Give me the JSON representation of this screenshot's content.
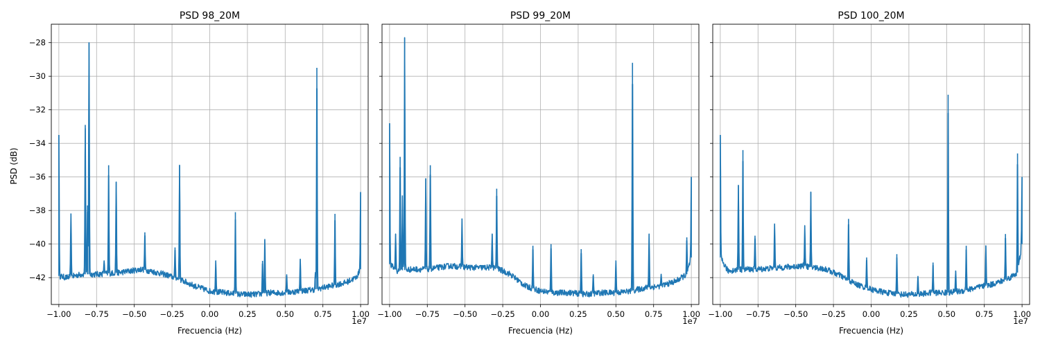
{
  "figure": {
    "shared_ylabel": "PSD (dB)",
    "line_color": "#1f77b4"
  },
  "chart_data": [
    {
      "type": "line",
      "title": "PSD 98_20M",
      "xlabel": "Frecuencia (Hz)",
      "ylabel": "PSD (dB)",
      "x_offset_text": "1e7",
      "xlim": [
        -10500000,
        10500000
      ],
      "ylim": [
        -43.6,
        -26.9
      ],
      "xticks": [
        -1.0,
        -0.75,
        -0.5,
        -0.25,
        0.0,
        0.25,
        0.5,
        0.75,
        1.0
      ],
      "xtick_labels": [
        "−1.00",
        "−0.75",
        "−0.50",
        "−0.25",
        "0.00",
        "0.25",
        "0.50",
        "0.75",
        "1.00"
      ],
      "yticks": [
        -42,
        -40,
        -38,
        -36,
        -34,
        -32,
        -30,
        -28
      ],
      "ytick_labels": [
        "−42",
        "−40",
        "−38",
        "−36",
        "−34",
        "−32",
        "−30",
        "−28"
      ],
      "grid": true,
      "baseline": [
        [
          -10000000,
          -41.9
        ],
        [
          -9500000,
          -42.0
        ],
        [
          -8500000,
          -41.8
        ],
        [
          -7500000,
          -41.8
        ],
        [
          -6000000,
          -41.7
        ],
        [
          -4500000,
          -41.5
        ],
        [
          -3000000,
          -41.8
        ],
        [
          -2000000,
          -42.1
        ],
        [
          -1000000,
          -42.5
        ],
        [
          0,
          -42.8
        ],
        [
          1000000,
          -42.9
        ],
        [
          2000000,
          -43.0
        ],
        [
          3000000,
          -43.0
        ],
        [
          4000000,
          -42.9
        ],
        [
          5000000,
          -42.9
        ],
        [
          6000000,
          -42.8
        ],
        [
          7000000,
          -42.7
        ],
        [
          8000000,
          -42.5
        ],
        [
          9000000,
          -42.3
        ],
        [
          9700000,
          -42.0
        ],
        [
          10000000,
          -41.5
        ]
      ],
      "peaks": [
        [
          -10000000,
          -33.5
        ],
        [
          -9200000,
          -38.2
        ],
        [
          -8250000,
          -32.9
        ],
        [
          -8100000,
          -37.7
        ],
        [
          -8000000,
          -28.0
        ],
        [
          -7000000,
          -41.0
        ],
        [
          -6700000,
          -35.3
        ],
        [
          -6200000,
          -36.3
        ],
        [
          -4300000,
          -39.3
        ],
        [
          -2300000,
          -40.2
        ],
        [
          -2000000,
          -35.3
        ],
        [
          400000,
          -41.0
        ],
        [
          1700000,
          -38.1
        ],
        [
          3500000,
          -41.0
        ],
        [
          3650000,
          -39.7
        ],
        [
          5100000,
          -41.8
        ],
        [
          6000000,
          -40.9
        ],
        [
          7000000,
          -41.7
        ],
        [
          7100000,
          -29.5
        ],
        [
          8300000,
          -38.2
        ],
        [
          10000000,
          -36.9
        ]
      ]
    },
    {
      "type": "line",
      "title": "PSD 99_20M",
      "xlabel": "Frecuencia (Hz)",
      "x_offset_text": "1e7",
      "xlim": [
        -10500000,
        10500000
      ],
      "ylim": [
        -43.6,
        -26.9
      ],
      "xticks": [
        -1.0,
        -0.75,
        -0.5,
        -0.25,
        0.0,
        0.25,
        0.5,
        0.75,
        1.0
      ],
      "xtick_labels": [
        "−1.00",
        "−0.75",
        "−0.50",
        "−0.25",
        "0.00",
        "0.25",
        "0.50",
        "0.75",
        "1.00"
      ],
      "yticks": [
        -42,
        -40,
        -38,
        -36,
        -34,
        -32,
        -30,
        -28
      ],
      "grid": true,
      "baseline": [
        [
          -10000000,
          -41.2
        ],
        [
          -9500000,
          -41.6
        ],
        [
          -8500000,
          -41.5
        ],
        [
          -7500000,
          -41.5
        ],
        [
          -6000000,
          -41.3
        ],
        [
          -4500000,
          -41.4
        ],
        [
          -3000000,
          -41.4
        ],
        [
          -2000000,
          -41.8
        ],
        [
          -1000000,
          -42.5
        ],
        [
          0,
          -42.8
        ],
        [
          1000000,
          -42.9
        ],
        [
          2000000,
          -42.9
        ],
        [
          3000000,
          -43.0
        ],
        [
          4000000,
          -42.9
        ],
        [
          5000000,
          -42.9
        ],
        [
          6000000,
          -42.8
        ],
        [
          7000000,
          -42.6
        ],
        [
          8000000,
          -42.5
        ],
        [
          9000000,
          -42.2
        ],
        [
          9700000,
          -41.8
        ],
        [
          10000000,
          -40.8
        ]
      ],
      "peaks": [
        [
          -10000000,
          -32.8
        ],
        [
          -9600000,
          -39.4
        ],
        [
          -9300000,
          -34.8
        ],
        [
          -9150000,
          -37.1
        ],
        [
          -9000000,
          -27.7
        ],
        [
          -7600000,
          -36.1
        ],
        [
          -7300000,
          -35.3
        ],
        [
          -5200000,
          -38.5
        ],
        [
          -3200000,
          -39.4
        ],
        [
          -2900000,
          -36.7
        ],
        [
          -500000,
          -40.1
        ],
        [
          700000,
          -40.0
        ],
        [
          2700000,
          -40.3
        ],
        [
          3500000,
          -41.8
        ],
        [
          5000000,
          -41.0
        ],
        [
          6100000,
          -29.2
        ],
        [
          7200000,
          -39.4
        ],
        [
          8000000,
          -41.8
        ],
        [
          9700000,
          -39.6
        ],
        [
          10000000,
          -36.0
        ]
      ]
    },
    {
      "type": "line",
      "title": "PSD 100_20M",
      "xlabel": "Frecuencia (Hz)",
      "x_offset_text": "1e7",
      "xlim": [
        -10500000,
        10500000
      ],
      "ylim": [
        -43.6,
        -26.9
      ],
      "xticks": [
        -1.0,
        -0.75,
        -0.5,
        -0.25,
        0.0,
        0.25,
        0.5,
        0.75,
        1.0
      ],
      "xtick_labels": [
        "−1.00",
        "−0.75",
        "−0.50",
        "−0.25",
        "0.00",
        "0.25",
        "0.50",
        "0.75",
        "1.00"
      ],
      "yticks": [
        -42,
        -40,
        -38,
        -36,
        -34,
        -32,
        -30,
        -28
      ],
      "grid": true,
      "baseline": [
        [
          -10000000,
          -40.8
        ],
        [
          -9500000,
          -41.6
        ],
        [
          -8500000,
          -41.5
        ],
        [
          -7500000,
          -41.5
        ],
        [
          -6000000,
          -41.4
        ],
        [
          -4500000,
          -41.3
        ],
        [
          -3000000,
          -41.5
        ],
        [
          -2000000,
          -41.9
        ],
        [
          -1000000,
          -42.4
        ],
        [
          0,
          -42.7
        ],
        [
          1000000,
          -42.9
        ],
        [
          2000000,
          -43.0
        ],
        [
          3000000,
          -43.0
        ],
        [
          4000000,
          -42.9
        ],
        [
          5000000,
          -42.9
        ],
        [
          6000000,
          -42.8
        ],
        [
          7000000,
          -42.6
        ],
        [
          8000000,
          -42.4
        ],
        [
          9000000,
          -42.1
        ],
        [
          9700000,
          -41.7
        ],
        [
          10000000,
          -40.0
        ]
      ],
      "peaks": [
        [
          -10000000,
          -33.5
        ],
        [
          -8800000,
          -36.5
        ],
        [
          -8500000,
          -34.4
        ],
        [
          -7700000,
          -39.5
        ],
        [
          -6400000,
          -38.8
        ],
        [
          -4400000,
          -38.9
        ],
        [
          -4000000,
          -36.9
        ],
        [
          -1500000,
          -38.5
        ],
        [
          -300000,
          -40.8
        ],
        [
          1700000,
          -40.6
        ],
        [
          3100000,
          -41.9
        ],
        [
          4100000,
          -41.1
        ],
        [
          5100000,
          -31.1
        ],
        [
          5600000,
          -41.6
        ],
        [
          6300000,
          -40.1
        ],
        [
          7600000,
          -40.1
        ],
        [
          8900000,
          -39.4
        ],
        [
          9700000,
          -34.6
        ],
        [
          10000000,
          -36.0
        ]
      ]
    }
  ]
}
